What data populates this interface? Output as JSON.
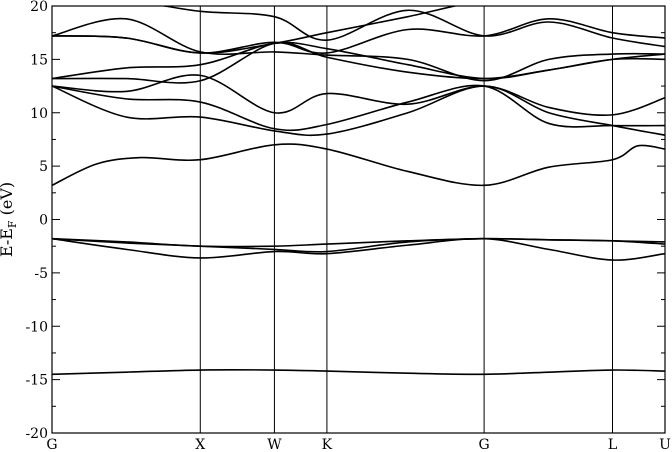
{
  "chart_data": {
    "type": "line",
    "title": "",
    "xlabel": "",
    "ylabel": "E-E",
    "ylabel_sub": "F",
    "ylabel_unit": " (eV)",
    "ylim": [
      -20,
      20
    ],
    "yticks": [
      "-20",
      "-15",
      "-10",
      "-5",
      "0",
      "5",
      "10",
      "15",
      "20"
    ],
    "ytick_values": [
      -20,
      -15,
      -10,
      -5,
      0,
      5,
      10,
      15,
      20
    ],
    "high_symmetry_labels": [
      "G",
      "X",
      "W",
      "K",
      "G",
      "L",
      "U"
    ],
    "high_symmetry_positions": [
      0,
      1,
      1.5,
      1.854,
      2.914,
      3.78,
      4.134
    ],
    "xlim": [
      0,
      4.134
    ],
    "grid": false,
    "legend": "none",
    "series": [
      {
        "x": [
          0,
          0.5,
          1,
          1.5,
          1.854,
          2.4,
          2.914,
          3.35,
          3.78,
          4.134
        ],
        "values": [
          -14.5,
          -14.3,
          -14.1,
          -14.1,
          -14.2,
          -14.4,
          -14.5,
          -14.3,
          -14.1,
          -14.2
        ]
      },
      {
        "x": [
          0,
          0.5,
          1,
          1.5,
          1.854,
          2.4,
          2.914,
          3.35,
          3.78,
          4.134
        ],
        "values": [
          -1.8,
          -2.8,
          -3.6,
          -3.0,
          -3.2,
          -2.4,
          -1.8,
          -2.8,
          -3.8,
          -3.2
        ]
      },
      {
        "x": [
          0,
          0.5,
          1,
          1.5,
          1.854,
          2.4,
          2.914,
          3.35,
          3.78,
          4.134
        ],
        "values": [
          -1.8,
          -2.2,
          -2.5,
          -2.8,
          -3.0,
          -2.1,
          -1.8,
          -1.9,
          -2.0,
          -2.3
        ]
      },
      {
        "x": [
          0,
          0.5,
          1,
          1.5,
          1.854,
          2.4,
          2.914,
          3.35,
          3.78,
          4.134
        ],
        "values": [
          -1.8,
          -2.1,
          -2.5,
          -2.5,
          -2.3,
          -2.0,
          -1.8,
          -1.9,
          -2.0,
          -2.1
        ]
      },
      {
        "x": [
          0,
          0.3,
          0.6,
          1,
          1.5,
          1.854,
          2.4,
          2.914,
          3.35,
          3.78,
          3.95,
          4.134
        ],
        "values": [
          3.2,
          5.2,
          5.8,
          5.6,
          7.0,
          6.6,
          4.5,
          3.2,
          4.9,
          5.6,
          6.9,
          6.6
        ]
      },
      {
        "x": [
          0,
          0.5,
          1,
          1.5,
          1.854,
          2.4,
          2.914,
          3.35,
          3.78,
          4.134
        ],
        "values": [
          12.5,
          9.6,
          9.6,
          8.3,
          8.0,
          10.0,
          12.5,
          10.0,
          8.8,
          7.9
        ]
      },
      {
        "x": [
          0,
          0.5,
          1,
          1.5,
          1.854,
          2.4,
          2.914,
          3.35,
          3.78,
          4.134
        ],
        "values": [
          12.5,
          11.3,
          11.0,
          8.5,
          8.9,
          11.0,
          12.5,
          9.0,
          8.8,
          8.8
        ]
      },
      {
        "x": [
          0,
          0.5,
          1,
          1.5,
          1.854,
          2.4,
          2.914,
          3.35,
          3.78,
          4.134
        ],
        "values": [
          12.5,
          12.0,
          13.5,
          10.0,
          11.8,
          10.8,
          12.5,
          10.5,
          9.8,
          11.4
        ]
      },
      {
        "x": [
          0,
          0.5,
          1,
          1.5,
          1.854,
          2.4,
          2.914,
          3.35,
          3.78,
          4.134
        ],
        "values": [
          13.2,
          13.2,
          13.0,
          16.5,
          15.2,
          13.8,
          13.2,
          14.0,
          15.0,
          15.5
        ]
      },
      {
        "x": [
          0,
          0.5,
          1,
          1.5,
          1.854,
          2.4,
          2.914,
          3.35,
          3.78,
          4.134
        ],
        "values": [
          13.2,
          14.2,
          14.5,
          16.5,
          16.0,
          14.5,
          13.2,
          14.0,
          15.0,
          15.0
        ]
      },
      {
        "x": [
          0,
          0.5,
          1,
          1.5,
          1.854,
          2.4,
          2.914,
          3.35,
          3.78,
          4.134
        ],
        "values": [
          17.2,
          18.8,
          15.7,
          15.7,
          15.4,
          15.0,
          13.0,
          15.0,
          15.5,
          15.5
        ]
      },
      {
        "x": [
          0,
          0.5,
          1,
          1.5,
          1.854,
          2.4,
          2.914,
          3.35,
          3.78,
          4.134
        ],
        "values": [
          17.2,
          17.0,
          15.6,
          16.6,
          15.6,
          17.8,
          17.2,
          18.8,
          17.5,
          17.0
        ]
      },
      {
        "x": [
          0,
          0.5,
          1,
          1.5,
          1.854,
          2.4,
          2.914,
          3.35,
          3.78,
          4.134
        ],
        "values": [
          20.5,
          20.5,
          19.5,
          19.0,
          16.8,
          19.6,
          17.2,
          18.5,
          17.0,
          16.2
        ]
      },
      {
        "x": [
          0,
          0.5,
          1,
          1.5,
          1.854,
          2.4,
          2.914,
          3.35,
          3.78,
          4.134
        ],
        "values": [
          17.2,
          17.0,
          15.6,
          16.5,
          17.5,
          19.0,
          20.5,
          20.5,
          20.5,
          20.5
        ]
      }
    ]
  }
}
